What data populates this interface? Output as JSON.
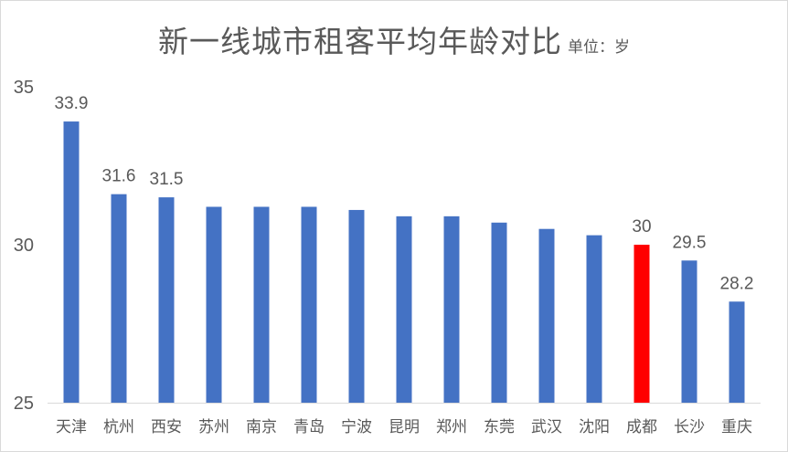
{
  "chart_data": {
    "type": "bar",
    "title": "新一线城市租客平均年龄对比",
    "unit": "单位：岁",
    "categories": [
      "天津",
      "杭州",
      "西安",
      "苏州",
      "南京",
      "青岛",
      "宁波",
      "昆明",
      "郑州",
      "东莞",
      "武汉",
      "沈阳",
      "成都",
      "长沙",
      "重庆"
    ],
    "values": [
      33.9,
      31.6,
      31.5,
      31.2,
      31.2,
      31.2,
      31.1,
      30.9,
      30.9,
      30.7,
      30.5,
      30.3,
      30,
      29.5,
      28.2
    ],
    "data_labels": [
      "33.9",
      "31.6",
      "31.5",
      null,
      null,
      null,
      null,
      null,
      null,
      null,
      null,
      null,
      "30",
      "29.5",
      "28.2"
    ],
    "ylim": [
      25,
      35
    ],
    "yticks": [
      25,
      30,
      35
    ],
    "grid": false,
    "legend": "none",
    "colors": {
      "default": "#4472C4",
      "highlight": "#FF0000",
      "highlight_category": "成都"
    }
  }
}
